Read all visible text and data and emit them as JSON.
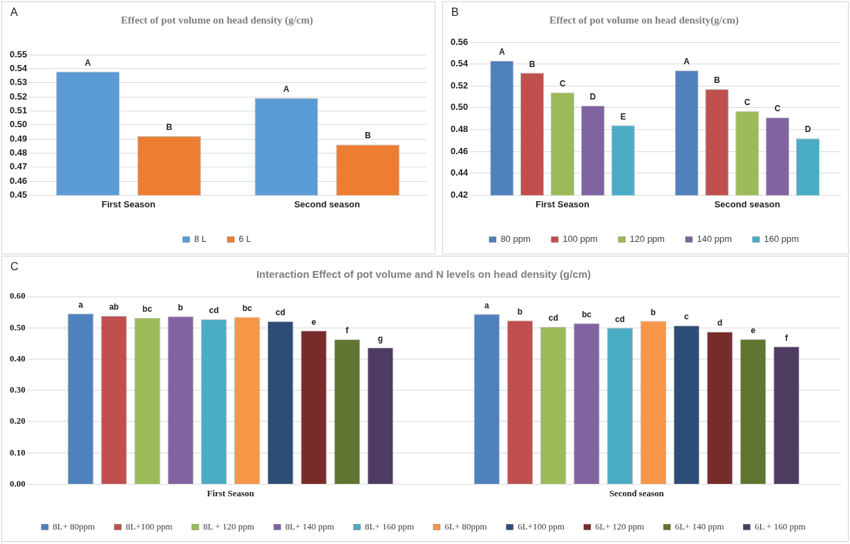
{
  "chart_data": [
    {
      "type": "bar",
      "title": "Effect of pot volume on head density (g/cm)",
      "annotations": [
        "A"
      ],
      "categories": [
        "First Season",
        "Second season"
      ],
      "series": [
        {
          "name": "8 L",
          "color": "#5b9bd5",
          "values": [
            0.538,
            0.519
          ],
          "value_labels": [
            "A",
            "A"
          ]
        },
        {
          "name": "6 L",
          "color": "#ed7d31",
          "values": [
            0.492,
            0.486
          ],
          "value_labels": [
            "B",
            "B"
          ]
        }
      ],
      "ylim": [
        0.45,
        0.55
      ],
      "yticks": [
        {
          "value": 0.45,
          "label": "0.45"
        },
        {
          "value": 0.46,
          "label": "0.46"
        },
        {
          "value": 0.47,
          "label": "0.47"
        },
        {
          "value": 0.48,
          "label": "0.48"
        },
        {
          "value": 0.49,
          "label": "0.49"
        },
        {
          "value": 0.5,
          "label": "0.50"
        },
        {
          "value": 0.51,
          "label": "0.51"
        },
        {
          "value": 0.52,
          "label": "0.52"
        },
        {
          "value": 0.53,
          "label": "0.53"
        },
        {
          "value": 0.54,
          "label": "0.54"
        },
        {
          "value": 0.55,
          "label": "0.55"
        }
      ],
      "grid": "y",
      "legend": "bottom"
    },
    {
      "type": "bar",
      "title": "Effect of pot volume on head density(g/cm)",
      "annotations": [
        "B"
      ],
      "categories": [
        "First Season",
        "Second season"
      ],
      "series": [
        {
          "name": "80 ppm",
          "color": "#4f81bd",
          "values": [
            0.543,
            0.534
          ],
          "value_labels": [
            "A",
            "A"
          ]
        },
        {
          "name": "100 ppm",
          "color": "#c0504d",
          "values": [
            0.532,
            0.517
          ],
          "value_labels": [
            "B",
            "B"
          ]
        },
        {
          "name": "120 ppm",
          "color": "#9bbb59",
          "values": [
            0.514,
            0.497
          ],
          "value_labels": [
            "C",
            "C"
          ]
        },
        {
          "name": "140 ppm",
          "color": "#8064a2",
          "values": [
            0.502,
            0.491
          ],
          "value_labels": [
            "D",
            "C"
          ]
        },
        {
          "name": "160 ppm",
          "color": "#4bacc6",
          "values": [
            0.484,
            0.472
          ],
          "value_labels": [
            "E",
            "D"
          ]
        }
      ],
      "ylim": [
        0.42,
        0.56
      ],
      "yticks": [
        {
          "value": 0.42,
          "label": "0.42"
        },
        {
          "value": 0.44,
          "label": "0.44"
        },
        {
          "value": 0.46,
          "label": "0.46"
        },
        {
          "value": 0.48,
          "label": "0.48"
        },
        {
          "value": 0.5,
          "label": "0.50"
        },
        {
          "value": 0.52,
          "label": "0.52"
        },
        {
          "value": 0.54,
          "label": "0.54"
        },
        {
          "value": 0.56,
          "label": "0.56"
        }
      ],
      "grid": "y",
      "legend": "bottom"
    },
    {
      "type": "bar",
      "title": "Interaction Effect of pot volume and N levels on head density (g/cm)",
      "annotations": [
        "C"
      ],
      "categories": [
        "First Season",
        "Second season"
      ],
      "series": [
        {
          "name": "8L+ 80ppm",
          "color": "#4f81bd",
          "values": [
            0.546,
            0.544
          ],
          "value_labels": [
            "a",
            "a"
          ]
        },
        {
          "name": "8L+100 ppm",
          "color": "#c0504d",
          "values": [
            0.538,
            0.524
          ],
          "value_labels": [
            "ab",
            "b"
          ]
        },
        {
          "name": "8L + 120 ppm",
          "color": "#9bbb59",
          "values": [
            0.532,
            0.503
          ],
          "value_labels": [
            "bc",
            "cd"
          ]
        },
        {
          "name": "8L+ 140 ppm",
          "color": "#8064a2",
          "values": [
            0.537,
            0.515
          ],
          "value_labels": [
            "b",
            "bc"
          ]
        },
        {
          "name": "8L+ 160 ppm",
          "color": "#4bacc6",
          "values": [
            0.527,
            0.5
          ],
          "value_labels": [
            "cd",
            "cd"
          ]
        },
        {
          "name": "6L+ 80ppm",
          "color": "#f79646",
          "values": [
            0.535,
            0.522
          ],
          "value_labels": [
            "bc",
            "b"
          ]
        },
        {
          "name": "6L+100 ppm",
          "color": "#2c4d75",
          "values": [
            0.521,
            0.507
          ],
          "value_labels": [
            "cd",
            "c"
          ]
        },
        {
          "name": "6L+ 120 ppm",
          "color": "#772c2a",
          "values": [
            0.491,
            0.487
          ],
          "value_labels": [
            "e",
            "d"
          ]
        },
        {
          "name": "6L+ 140 ppm",
          "color": "#5f7530",
          "values": [
            0.463,
            0.464
          ],
          "value_labels": [
            "f",
            "e"
          ]
        },
        {
          "name": "6L + 160 ppm",
          "color": "#4d3b62",
          "values": [
            0.437,
            0.44
          ],
          "value_labels": [
            "g",
            "f"
          ]
        }
      ],
      "ylim": [
        0,
        0.6
      ],
      "yticks": [
        {
          "value": 0,
          "label": "0.00"
        },
        {
          "value": 0.1,
          "label": "0.10"
        },
        {
          "value": 0.2,
          "label": "0.20"
        },
        {
          "value": 0.3,
          "label": "0.30"
        },
        {
          "value": 0.4,
          "label": "0.40"
        },
        {
          "value": 0.5,
          "label": "0.50"
        },
        {
          "value": 0.6,
          "label": "0.60"
        }
      ],
      "grid": "y",
      "legend": "bottom"
    }
  ]
}
